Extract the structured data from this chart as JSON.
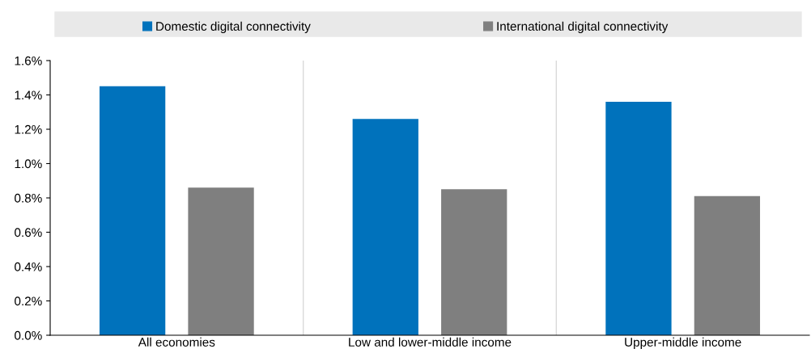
{
  "chart_data": {
    "type": "bar",
    "categories": [
      "All economies",
      "Low and lower-middle income",
      "Upper-middle income"
    ],
    "series": [
      {
        "name": "Domestic digital connectivity",
        "color": "#0072bc",
        "values": [
          0.0145,
          0.0126,
          0.0136
        ]
      },
      {
        "name": "International digital connectivity",
        "color": "#7f7f7f",
        "values": [
          0.0086,
          0.0085,
          0.0081
        ]
      }
    ],
    "ylim": [
      0,
      0.016
    ],
    "yticks": [
      {
        "value": 0,
        "label": "0.0%"
      },
      {
        "value": 0.002,
        "label": "0.2%"
      },
      {
        "value": 0.004,
        "label": "0.4%"
      },
      {
        "value": 0.006,
        "label": "0.6%"
      },
      {
        "value": 0.008,
        "label": "0.8%"
      },
      {
        "value": 0.01,
        "label": "1.0%"
      },
      {
        "value": 0.012,
        "label": "1.2%"
      },
      {
        "value": 0.014,
        "label": "1.4%"
      },
      {
        "value": 0.016,
        "label": "1.6%"
      }
    ],
    "legend": "top",
    "grid": false
  }
}
